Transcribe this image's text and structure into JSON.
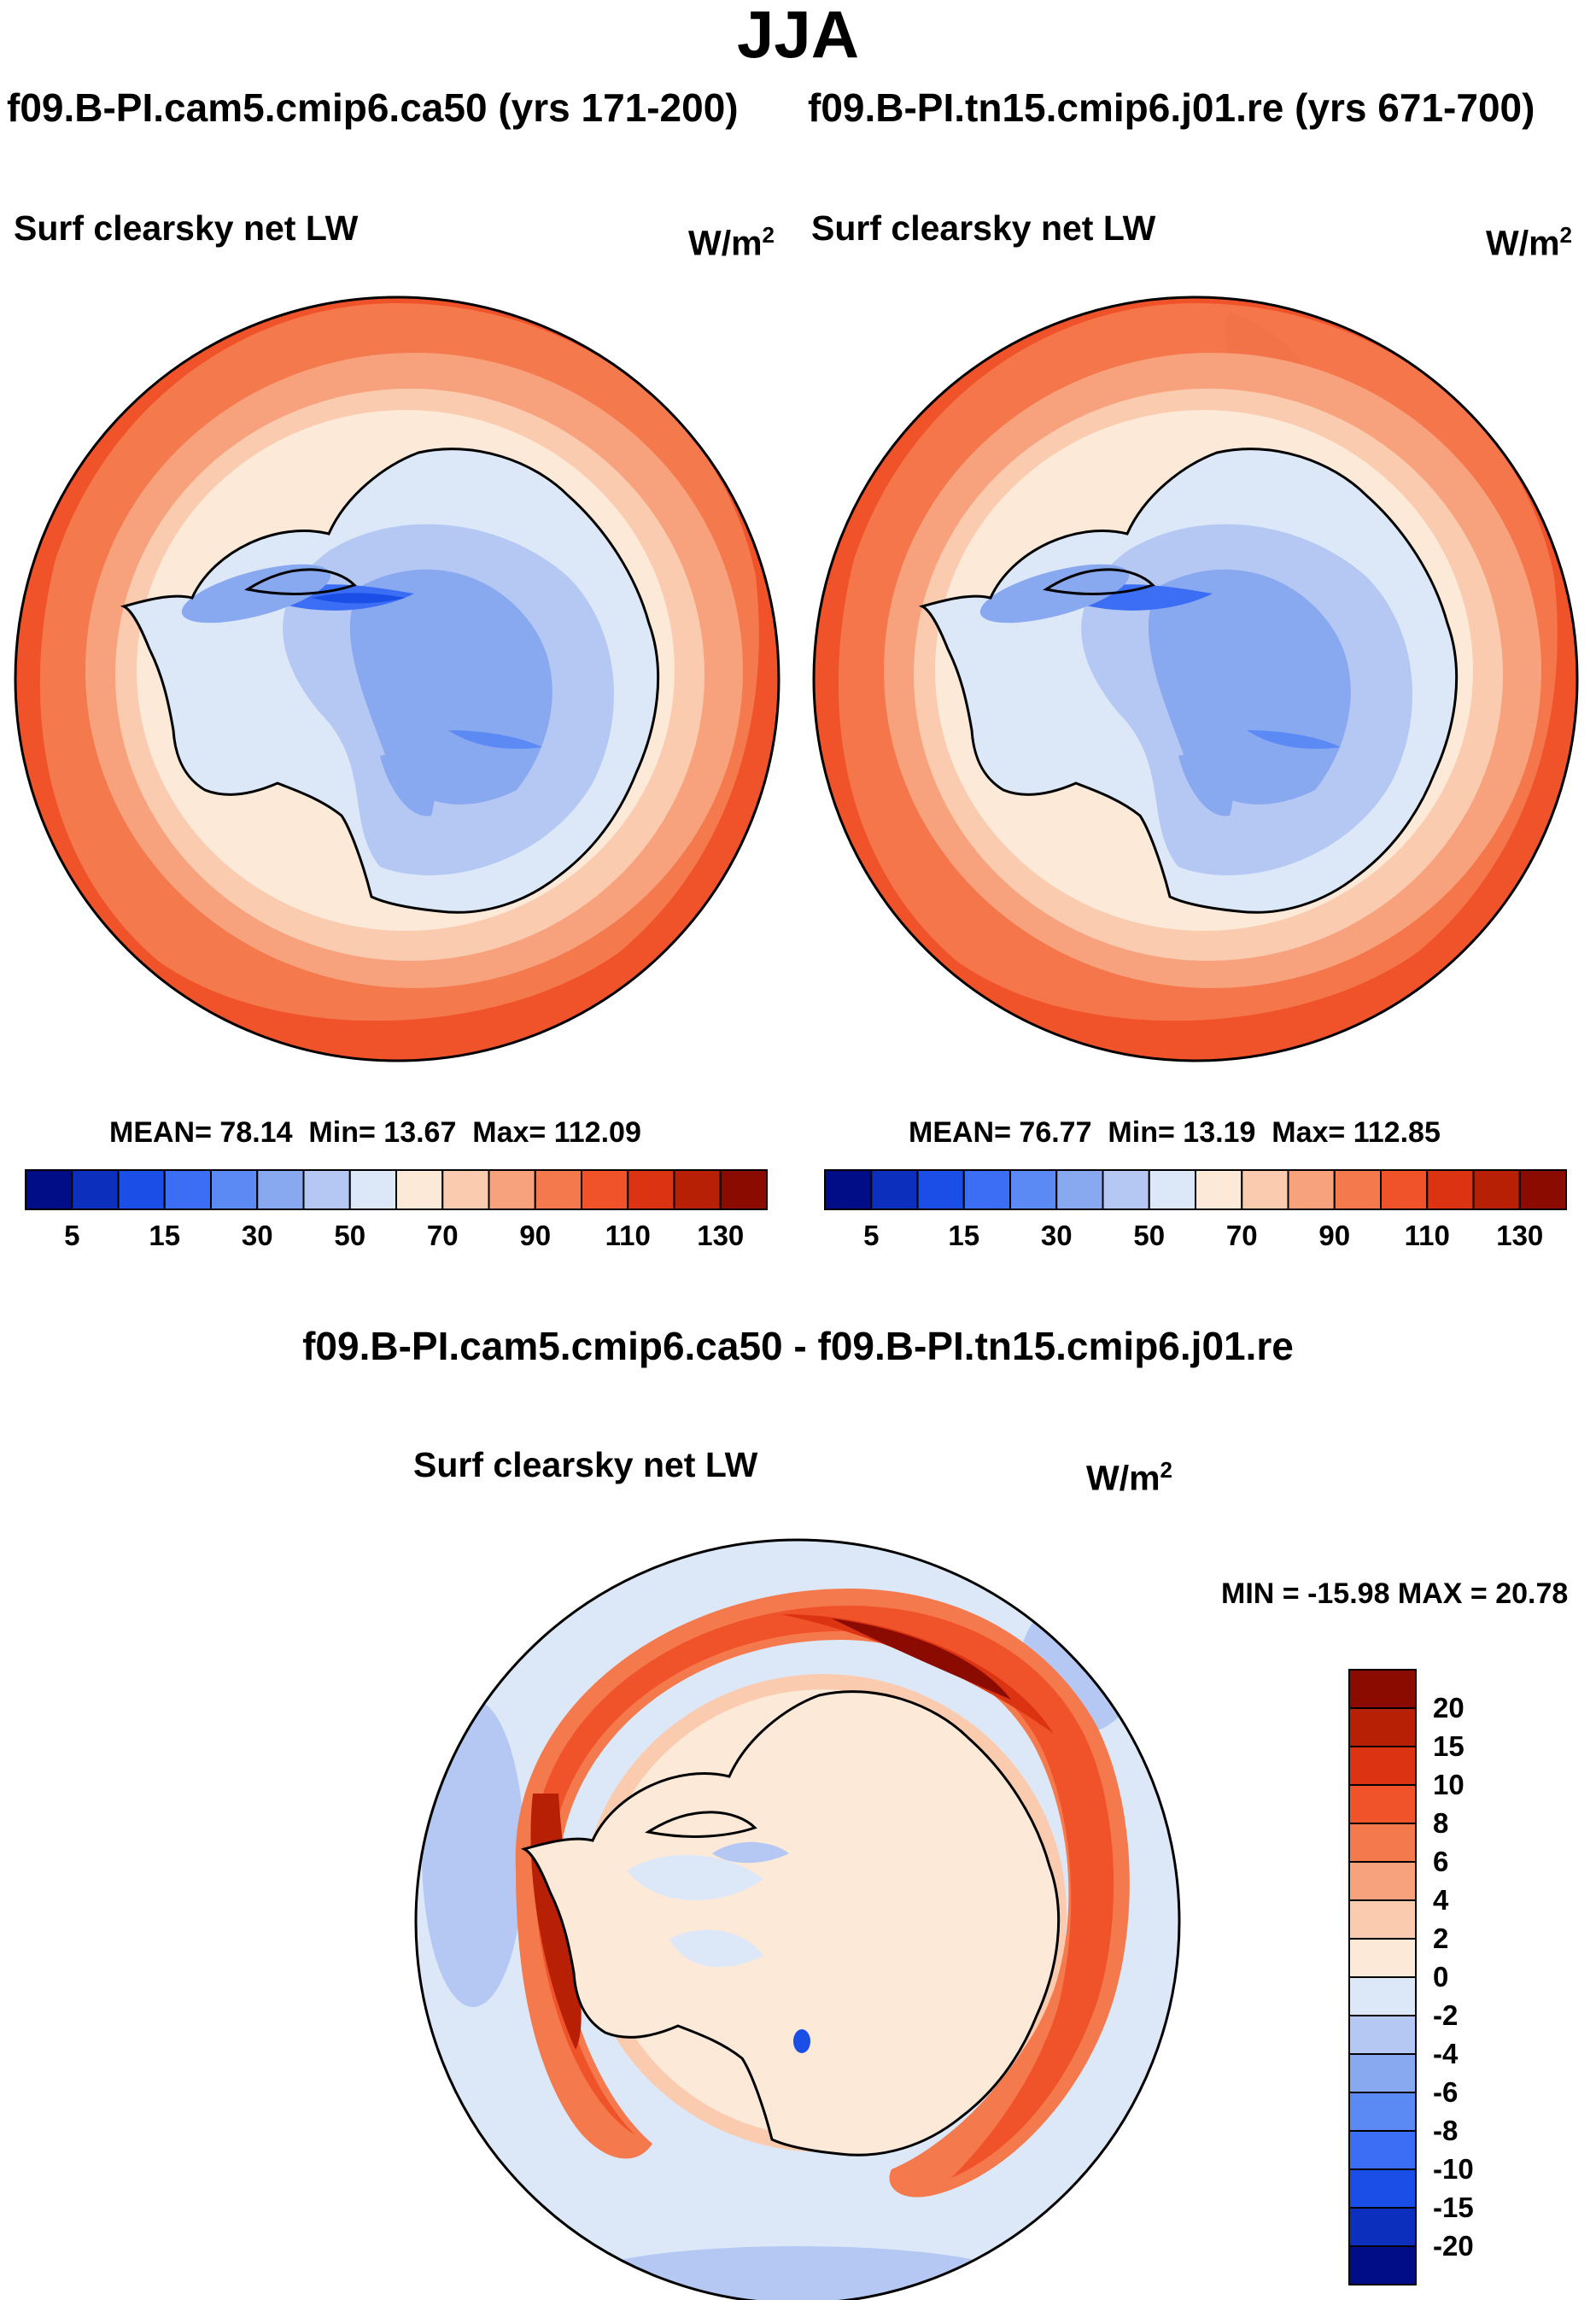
{
  "title": "JJA",
  "panels": [
    {
      "case_title": "f09.B-PI.cam5.cmip6.ca50 (yrs 171-200)",
      "variable": "Surf clearsky net LW",
      "units_base": "W/m",
      "units_exp": "2",
      "mean_label": "MEAN=",
      "mean_value": "78.14",
      "min_label": "Min=",
      "min_value": "13.67",
      "max_label": "Max=",
      "max_value": "112.09"
    },
    {
      "case_title": "f09.B-PI.tn15.cmip6.j01.re (yrs 671-700)",
      "variable": "Surf clearsky net LW",
      "units_base": "W/m",
      "units_exp": "2",
      "mean_label": "MEAN=",
      "mean_value": "76.77",
      "min_label": "Min=",
      "min_value": "13.19",
      "max_label": "Max=",
      "max_value": "112.85"
    }
  ],
  "diff_panel": {
    "case_title": "f09.B-PI.cam5.cmip6.ca50 - f09.B-PI.tn15.cmip6.j01.re",
    "variable": "Surf clearsky net LW",
    "units_base": "W/m",
    "units_exp": "2",
    "minmax_text": "MIN = -15.98 MAX =  20.78"
  },
  "abs_colorbar": {
    "colors": [
      "#000d86",
      "#0d2fbd",
      "#1b4ee6",
      "#3b6ef5",
      "#5b8af5",
      "#88a8f0",
      "#b5c8f3",
      "#dce8f8",
      "#fde9d8",
      "#fbcbb0",
      "#f7a27c",
      "#f47a4e",
      "#f0522a",
      "#dc3412",
      "#b82005",
      "#8b0b00"
    ],
    "tick_labels": [
      "5",
      "15",
      "30",
      "50",
      "70",
      "90",
      "110",
      "130"
    ]
  },
  "diff_colorbar": {
    "colors": [
      "#8b0b00",
      "#b82005",
      "#dc3412",
      "#f0522a",
      "#f47a4e",
      "#f7a27c",
      "#fbcbb0",
      "#fde9d8",
      "#dce8f8",
      "#b5c8f3",
      "#88a8f0",
      "#5b8af5",
      "#3b6ef5",
      "#1b4ee6",
      "#0d2fbd",
      "#000d86"
    ],
    "tick_labels": [
      "20",
      "15",
      "10",
      "8",
      "6",
      "4",
      "2",
      "0",
      "-2",
      "-4",
      "-6",
      "-8",
      "-10",
      "-15",
      "-20"
    ]
  }
}
